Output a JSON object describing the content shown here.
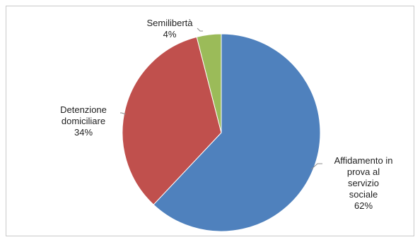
{
  "chart_data": {
    "type": "pie",
    "title": "",
    "slices": [
      {
        "label_lines": [
          "Affidamento in",
          "prova al",
          "servizio",
          "sociale"
        ],
        "value": 62,
        "value_label": "62%",
        "color": "#4f81bd"
      },
      {
        "label_lines": [
          "Detenzione",
          "domiciliare"
        ],
        "value": 34,
        "value_label": "34%",
        "color": "#c0504d"
      },
      {
        "label_lines": [
          "Semilibertà"
        ],
        "value": 4,
        "value_label": "4%",
        "color": "#9bbb59"
      }
    ],
    "start": "12 o'clock",
    "direction": "clockwise",
    "legend": "none",
    "data_labels": "outside, with leader lines"
  }
}
